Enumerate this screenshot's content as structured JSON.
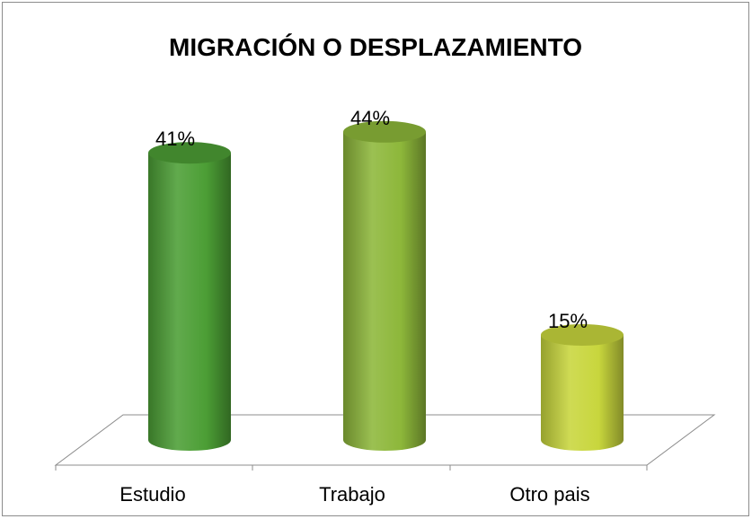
{
  "chart_data": {
    "type": "bar3d-cylinder",
    "title": "MIGRACIÓN O DESPLAZAMIENTO",
    "categories": [
      "Estudio",
      "Trabajo",
      "Otro pais"
    ],
    "values": [
      41,
      44,
      15
    ],
    "value_labels": [
      "41%",
      "44%",
      "15%"
    ],
    "colors": [
      "#4c9e35",
      "#8db73a",
      "#c8d63d"
    ]
  }
}
